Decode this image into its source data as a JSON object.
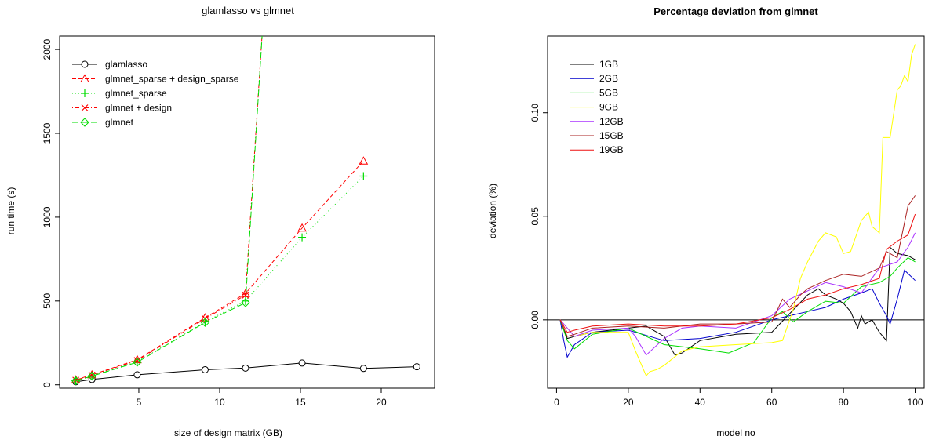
{
  "chart_data": [
    {
      "type": "line",
      "title": "glamlasso vs glmnet",
      "xlabel": "size of design matrix (GB)",
      "ylabel": "run time (s)",
      "xlim": [
        0.1,
        23.3
      ],
      "ylim": [
        -20,
        2080
      ],
      "xticks": [
        5,
        10,
        15,
        20
      ],
      "yticks": [
        0,
        500,
        1000,
        1500,
        2000
      ],
      "legend_position": "top-left",
      "series": [
        {
          "name": "glamlasso",
          "color": "#000000",
          "dash": "solid",
          "marker": "circle",
          "points": [
            [
              1.1,
              18
            ],
            [
              2.1,
              32
            ],
            [
              4.9,
              60
            ],
            [
              9.1,
              90
            ],
            [
              11.6,
              100
            ],
            [
              15.1,
              130
            ],
            [
              18.9,
              98
            ],
            [
              22.2,
              108
            ]
          ]
        },
        {
          "name": "glmnet_sparse + design_sparse",
          "color": "#ff0000",
          "dash": "dashed",
          "marker": "triangle",
          "points": [
            [
              1.1,
              30
            ],
            [
              2.1,
              60
            ],
            [
              4.9,
              150
            ],
            [
              9.1,
              400
            ],
            [
              11.6,
              545
            ],
            [
              15.1,
              935
            ],
            [
              18.9,
              1335
            ]
          ]
        },
        {
          "name": "glmnet_sparse",
          "color": "#00dd00",
          "dash": "dotted",
          "marker": "plus",
          "points": [
            [
              1.1,
              26
            ],
            [
              2.1,
              55
            ],
            [
              4.9,
              138
            ],
            [
              9.1,
              375
            ],
            [
              11.6,
              500
            ],
            [
              15.1,
              880
            ],
            [
              18.9,
              1245
            ]
          ]
        },
        {
          "name": "glmnet + design",
          "color": "#ff0000",
          "dash": "dotdash",
          "marker": "cross",
          "points": [
            [
              1.1,
              28
            ],
            [
              2.1,
              58
            ],
            [
              4.9,
              145
            ],
            [
              9.1,
              395
            ],
            [
              11.6,
              535
            ],
            [
              12.9,
              2500
            ]
          ]
        },
        {
          "name": "glmnet",
          "color": "#00dd00",
          "dash": "dashlong",
          "marker": "diamond",
          "points": [
            [
              1.1,
              24
            ],
            [
              2.1,
              52
            ],
            [
              4.9,
              135
            ],
            [
              9.1,
              372
            ],
            [
              11.6,
              490
            ],
            [
              12.9,
              2500
            ]
          ]
        }
      ]
    },
    {
      "type": "line",
      "title": "Percentage deviation from glmnet",
      "xlabel": "model no",
      "ylabel": "deviation (%)",
      "xlim": [
        -2.5,
        102.5
      ],
      "ylim": [
        -0.033,
        0.137
      ],
      "xticks": [
        0,
        20,
        40,
        60,
        80,
        100
      ],
      "yticks": [
        0.0,
        0.05,
        0.1
      ],
      "ytick_labels": [
        "0.00",
        "0.05",
        "0.10"
      ],
      "hline": 0,
      "legend_position": "top-left",
      "series": [
        {
          "name": "1GB",
          "color": "#000000",
          "x": [
            1,
            3,
            5,
            10,
            20,
            25,
            30,
            33,
            35,
            40,
            50,
            60,
            65,
            70,
            73,
            75,
            78,
            80,
            82,
            84,
            85,
            86,
            88,
            90,
            92,
            93,
            95,
            98,
            100
          ],
          "y": [
            0,
            -0.009,
            -0.008,
            -0.006,
            -0.004,
            -0.003,
            -0.008,
            -0.017,
            -0.016,
            -0.01,
            -0.007,
            -0.006,
            0.003,
            0.012,
            0.015,
            0.012,
            0.01,
            0.008,
            0.004,
            -0.004,
            0.002,
            -0.002,
            0.0,
            -0.006,
            -0.01,
            0.035,
            0.032,
            0.031,
            0.029
          ]
        },
        {
          "name": "2GB",
          "color": "#0000cc",
          "x": [
            1,
            2,
            3,
            5,
            10,
            20,
            30,
            40,
            50,
            60,
            65,
            70,
            75,
            80,
            85,
            88,
            90,
            92,
            93,
            95,
            97,
            100
          ],
          "y": [
            0,
            -0.01,
            -0.018,
            -0.012,
            -0.006,
            -0.005,
            -0.01,
            -0.009,
            -0.006,
            0.0,
            0.002,
            0.004,
            0.006,
            0.01,
            0.013,
            0.015,
            0.008,
            0.002,
            -0.002,
            0.01,
            0.024,
            0.019
          ]
        },
        {
          "name": "5GB",
          "color": "#00dd00",
          "x": [
            1,
            3,
            5,
            10,
            20,
            30,
            40,
            48,
            55,
            60,
            63,
            66,
            70,
            75,
            80,
            85,
            90,
            93,
            95,
            98,
            100
          ],
          "y": [
            0,
            -0.01,
            -0.014,
            -0.007,
            -0.004,
            -0.012,
            -0.014,
            -0.016,
            -0.011,
            0.001,
            0.004,
            -0.001,
            0.004,
            0.009,
            0.008,
            0.016,
            0.018,
            0.021,
            0.025,
            0.03,
            0.028
          ]
        },
        {
          "name": "9GB",
          "color": "#ffff00",
          "x": [
            1,
            5,
            10,
            20,
            22,
            25,
            26,
            28,
            30,
            35,
            40,
            50,
            60,
            63,
            66,
            68,
            70,
            73,
            75,
            78,
            80,
            82,
            85,
            87,
            88,
            90,
            91,
            93,
            95,
            96,
            97,
            98,
            99,
            100
          ],
          "y": [
            0,
            -0.008,
            -0.006,
            -0.006,
            -0.015,
            -0.027,
            -0.025,
            -0.024,
            -0.022,
            -0.015,
            -0.013,
            -0.012,
            -0.011,
            -0.01,
            0.005,
            0.02,
            0.028,
            0.038,
            0.042,
            0.04,
            0.032,
            0.033,
            0.048,
            0.052,
            0.045,
            0.042,
            0.088,
            0.088,
            0.111,
            0.113,
            0.118,
            0.115,
            0.128,
            0.133
          ]
        },
        {
          "name": "12GB",
          "color": "#aa33ff",
          "x": [
            1,
            5,
            10,
            20,
            22,
            24,
            25,
            30,
            35,
            40,
            50,
            60,
            65,
            70,
            75,
            80,
            85,
            90,
            95,
            98,
            100
          ],
          "y": [
            0,
            -0.008,
            -0.005,
            -0.004,
            -0.008,
            -0.014,
            -0.017,
            -0.009,
            -0.004,
            -0.003,
            -0.004,
            0.002,
            0.01,
            0.014,
            0.018,
            0.016,
            0.013,
            0.025,
            0.028,
            0.035,
            0.042
          ]
        },
        {
          "name": "15GB",
          "color": "#aa2222",
          "x": [
            1,
            3,
            5,
            10,
            20,
            30,
            40,
            50,
            60,
            63,
            65,
            68,
            70,
            75,
            80,
            85,
            90,
            92,
            95,
            98,
            100
          ],
          "y": [
            0,
            -0.008,
            -0.007,
            -0.004,
            -0.003,
            -0.004,
            -0.002,
            -0.002,
            -0.001,
            0.01,
            0.006,
            0.012,
            0.015,
            0.019,
            0.022,
            0.021,
            0.025,
            0.033,
            0.03,
            0.055,
            0.06
          ]
        },
        {
          "name": "19GB",
          "color": "#ee1111",
          "x": [
            1,
            3,
            5,
            10,
            20,
            30,
            40,
            50,
            60,
            65,
            70,
            75,
            80,
            85,
            90,
            92,
            95,
            98,
            100
          ],
          "y": [
            0,
            -0.006,
            -0.005,
            -0.003,
            -0.002,
            -0.003,
            -0.003,
            -0.002,
            0.001,
            0.005,
            0.01,
            0.012,
            0.015,
            0.017,
            0.02,
            0.034,
            0.038,
            0.041,
            0.051
          ]
        }
      ]
    }
  ]
}
